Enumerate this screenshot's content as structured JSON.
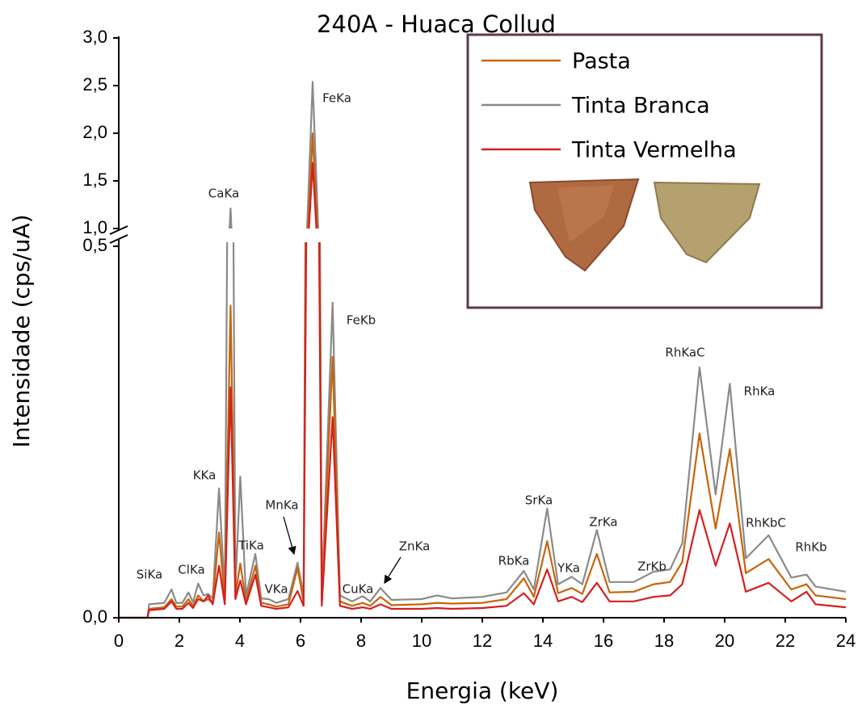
{
  "chart_data": {
    "type": "line",
    "title": "240A - Huaca Collud",
    "x_label": "Energia (keV)",
    "y_label": "Intensidade (cps/uA)",
    "xlim": [
      0,
      24
    ],
    "xticks": [
      0,
      2,
      4,
      6,
      8,
      10,
      12,
      14,
      16,
      18,
      20,
      22,
      24
    ],
    "y_segments": [
      {
        "ylim": [
          0,
          0.5
        ],
        "yticks": [
          {
            "value": 0,
            "label": "0,0"
          },
          {
            "value": 0.5,
            "label": "0,5"
          }
        ]
      },
      {
        "ylim": [
          1,
          3
        ],
        "yticks": [
          {
            "value": 1,
            "label": "1,0"
          },
          {
            "value": 1.5,
            "label": "1,5"
          },
          {
            "value": 2,
            "label": "2,0"
          },
          {
            "value": 2.5,
            "label": "2,5"
          },
          {
            "value": 3,
            "label": "3,0"
          }
        ]
      }
    ],
    "x": [
      0,
      0.95,
      1.0,
      1.5,
      1.74,
      1.9,
      2.1,
      2.3,
      2.45,
      2.62,
      2.8,
      2.95,
      3.1,
      3.31,
      3.5,
      3.69,
      3.85,
      4.01,
      4.2,
      4.51,
      4.7,
      4.95,
      5.2,
      5.6,
      5.9,
      6.1,
      6.4,
      6.7,
      7.06,
      7.3,
      7.7,
      8.05,
      8.3,
      8.64,
      9.0,
      10.0,
      10.5,
      11,
      12,
      12.8,
      13.37,
      13.7,
      14.14,
      14.5,
      14.95,
      15.3,
      15.78,
      16.2,
      17.0,
      17.65,
      18.2,
      18.6,
      19.17,
      19.7,
      20.17,
      20.7,
      21.45,
      22.2,
      22.7,
      23.0,
      24.0
    ],
    "series": [
      {
        "name": "Pasta",
        "color": "#c8640a",
        "values": [
          0,
          0,
          0.012,
          0.014,
          0.025,
          0.015,
          0.015,
          0.025,
          0.016,
          0.03,
          0.022,
          0.025,
          0.02,
          0.115,
          0.022,
          0.42,
          0.03,
          0.073,
          0.022,
          0.07,
          0.02,
          0.018,
          0.015,
          0.018,
          0.067,
          0.022,
          2.0,
          0.022,
          0.351,
          0.022,
          0.016,
          0.02,
          0.016,
          0.028,
          0.017,
          0.018,
          0.02,
          0.019,
          0.02,
          0.025,
          0.053,
          0.028,
          0.103,
          0.033,
          0.04,
          0.032,
          0.086,
          0.034,
          0.035,
          0.045,
          0.048,
          0.075,
          0.248,
          0.12,
          0.227,
          0.06,
          0.079,
          0.038,
          0.045,
          0.03,
          0.025
        ]
      },
      {
        "name": "Tinta Branca",
        "color": "#8a8a8a",
        "values": [
          0,
          0,
          0.018,
          0.02,
          0.038,
          0.02,
          0.02,
          0.034,
          0.021,
          0.046,
          0.03,
          0.032,
          0.026,
          0.174,
          0.03,
          1.21,
          0.04,
          0.19,
          0.03,
          0.086,
          0.026,
          0.025,
          0.02,
          0.025,
          0.074,
          0.03,
          2.54,
          0.03,
          0.424,
          0.03,
          0.022,
          0.029,
          0.022,
          0.04,
          0.024,
          0.025,
          0.03,
          0.026,
          0.028,
          0.034,
          0.063,
          0.038,
          0.147,
          0.045,
          0.055,
          0.045,
          0.118,
          0.048,
          0.048,
          0.062,
          0.065,
          0.1,
          0.337,
          0.166,
          0.315,
          0.08,
          0.111,
          0.054,
          0.058,
          0.042,
          0.035
        ]
      },
      {
        "name": "Tinta Vermelha",
        "color": "#d42020",
        "values": [
          0,
          0,
          0.01,
          0.012,
          0.022,
          0.012,
          0.012,
          0.02,
          0.013,
          0.025,
          0.022,
          0.03,
          0.018,
          0.07,
          0.018,
          0.31,
          0.025,
          0.05,
          0.018,
          0.058,
          0.016,
          0.014,
          0.012,
          0.014,
          0.036,
          0.016,
          1.69,
          0.016,
          0.27,
          0.016,
          0.012,
          0.014,
          0.012,
          0.018,
          0.012,
          0.012,
          0.013,
          0.012,
          0.013,
          0.016,
          0.033,
          0.018,
          0.065,
          0.022,
          0.028,
          0.021,
          0.047,
          0.022,
          0.022,
          0.028,
          0.03,
          0.045,
          0.145,
          0.07,
          0.127,
          0.035,
          0.047,
          0.022,
          0.035,
          0.018,
          0.014
        ]
      }
    ],
    "annotations": [
      "SiKa",
      "ClKa",
      "KKa",
      "CaKa",
      "TiKa",
      "VKa",
      "MnKa",
      "FeKa",
      "FeKb",
      "CuKa",
      "ZnKa",
      "RbKa",
      "SrKa",
      "YKa",
      "ZrKa",
      "ZrKb",
      "RhKaC",
      "RhKa",
      "RhKbC",
      "RhKb"
    ]
  }
}
